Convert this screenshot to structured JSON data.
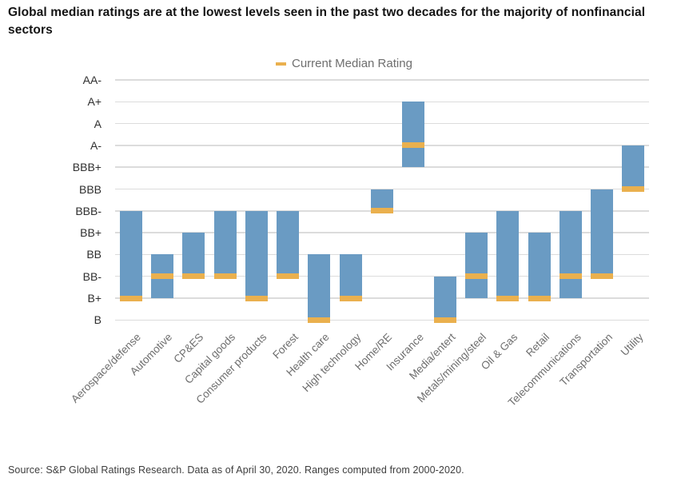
{
  "title": "Global median ratings are at the lowest levels seen in the past two decades for the majority of nonfinancial sectors",
  "legend": {
    "label": "Current Median Rating"
  },
  "source": "Source: S&P Global Ratings Research. Data as of April 30, 2020. Ranges computed from 2000-2020.",
  "colors": {
    "bar": "#6a9bc3",
    "median": "#eab04e",
    "gridline": "#dcdcdc",
    "y_tick_text": "#2f2f2f",
    "x_label_text": "#6e6e6e",
    "title_text": "#141414",
    "legend_text": "#6e6e6e",
    "source_text": "#3d3d3d"
  },
  "chart_data": {
    "type": "bar",
    "variant": "floating-range-with-median-marker",
    "title": "",
    "xlabel": "",
    "ylabel": "",
    "grid": "horizontal",
    "legend_position": "top-center",
    "y_ticks_top_to_bottom": [
      "AA-",
      "A+",
      "A",
      "A-",
      "BBB+",
      "BBB",
      "BBB-",
      "BB+",
      "BB",
      "BB-",
      "B+",
      "B"
    ],
    "range_note": "Each bar spans the best (range_high) to worst (range_low) median rating observed 2000-2020; orange marker is the current median rating.",
    "sectors": [
      {
        "label": "Aerospace/defense",
        "range_high": "BBB-",
        "range_low": "B+",
        "median": "B+"
      },
      {
        "label": "Automotive",
        "range_high": "BB",
        "range_low": "B+",
        "median": "BB-"
      },
      {
        "label": "CP&ES",
        "range_high": "BB+",
        "range_low": "BB-",
        "median": "BB-"
      },
      {
        "label": "Capital goods",
        "range_high": "BBB-",
        "range_low": "BB-",
        "median": "BB-"
      },
      {
        "label": "Consumer products",
        "range_high": "BBB-",
        "range_low": "B+",
        "median": "B+"
      },
      {
        "label": "Forest",
        "range_high": "BBB-",
        "range_low": "BB-",
        "median": "BB-"
      },
      {
        "label": "Health care",
        "range_high": "BB",
        "range_low": "B",
        "median": "B"
      },
      {
        "label": "High technology",
        "range_high": "BB",
        "range_low": "B+",
        "median": "B+"
      },
      {
        "label": "Home/RE",
        "range_high": "BBB",
        "range_low": "BBB-",
        "median": "BBB-"
      },
      {
        "label": "Insurance",
        "range_high": "A+",
        "range_low": "BBB+",
        "median": "A-"
      },
      {
        "label": "Media/entert",
        "range_high": "BB-",
        "range_low": "B",
        "median": "B"
      },
      {
        "label": "Metals/mining/steel",
        "range_high": "BB+",
        "range_low": "B+",
        "median": "BB-"
      },
      {
        "label": "Oil & Gas",
        "range_high": "BBB-",
        "range_low": "B+",
        "median": "B+"
      },
      {
        "label": "Retail",
        "range_high": "BB+",
        "range_low": "B+",
        "median": "B+"
      },
      {
        "label": "Telecommunications",
        "range_high": "BBB-",
        "range_low": "B+",
        "median": "BB-"
      },
      {
        "label": "Transportation",
        "range_high": "BBB",
        "range_low": "BB-",
        "median": "BB-"
      },
      {
        "label": "Utility",
        "range_high": "A-",
        "range_low": "BBB",
        "median": "BBB"
      }
    ]
  }
}
